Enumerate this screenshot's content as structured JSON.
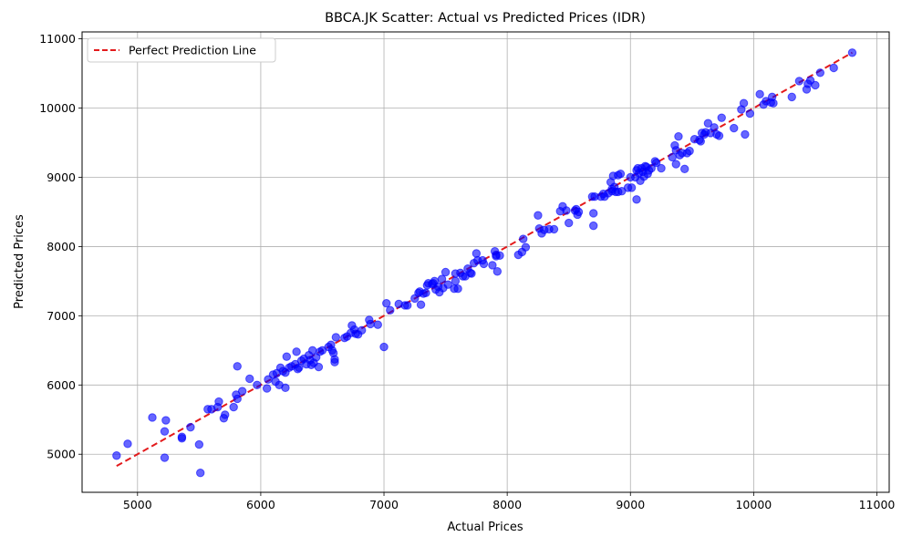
{
  "chart_data": {
    "type": "scatter",
    "title": "BBCA.JK Scatter: Actual vs Predicted Prices (IDR)",
    "xlabel": "Actual Prices",
    "ylabel": "Predicted Prices",
    "xlim": [
      4550,
      11100
    ],
    "ylim": [
      4450,
      11100
    ],
    "xticks": [
      5000,
      6000,
      7000,
      8000,
      9000,
      10000,
      11000
    ],
    "yticks": [
      5000,
      6000,
      7000,
      8000,
      9000,
      10000,
      11000
    ],
    "grid": true,
    "legend_position": "upper-left",
    "colors": {
      "points": "#0000ff",
      "line": "#e31a1c"
    },
    "reference_line": {
      "name": "Perfect Prediction Line",
      "from": [
        4830,
        4830
      ],
      "to": [
        10800,
        10800
      ]
    },
    "points": [
      [
        4830,
        4980
      ],
      [
        4920,
        5150
      ],
      [
        5120,
        5530
      ],
      [
        5220,
        5330
      ],
      [
        5230,
        5490
      ],
      [
        5220,
        4950
      ],
      [
        5360,
        5250
      ],
      [
        5360,
        5230
      ],
      [
        5430,
        5390
      ],
      [
        5500,
        5140
      ],
      [
        5510,
        4730
      ],
      [
        5570,
        5650
      ],
      [
        5600,
        5650
      ],
      [
        5650,
        5680
      ],
      [
        5660,
        5760
      ],
      [
        5700,
        5520
      ],
      [
        5710,
        5570
      ],
      [
        5780,
        5680
      ],
      [
        5800,
        5860
      ],
      [
        5810,
        5800
      ],
      [
        5810,
        6270
      ],
      [
        5850,
        5910
      ],
      [
        5910,
        6090
      ],
      [
        5970,
        6000
      ],
      [
        6050,
        5950
      ],
      [
        6060,
        6080
      ],
      [
        6100,
        6150
      ],
      [
        6120,
        6050
      ],
      [
        6130,
        6170
      ],
      [
        6150,
        6000
      ],
      [
        6160,
        6250
      ],
      [
        6180,
        6200
      ],
      [
        6200,
        5960
      ],
      [
        6200,
        6180
      ],
      [
        6210,
        6410
      ],
      [
        6230,
        6250
      ],
      [
        6250,
        6270
      ],
      [
        6280,
        6300
      ],
      [
        6290,
        6480
      ],
      [
        6300,
        6230
      ],
      [
        6310,
        6250
      ],
      [
        6330,
        6350
      ],
      [
        6350,
        6380
      ],
      [
        6370,
        6300
      ],
      [
        6390,
        6430
      ],
      [
        6400,
        6360
      ],
      [
        6410,
        6290
      ],
      [
        6420,
        6500
      ],
      [
        6430,
        6320
      ],
      [
        6450,
        6400
      ],
      [
        6470,
        6260
      ],
      [
        6480,
        6480
      ],
      [
        6500,
        6500
      ],
      [
        6550,
        6550
      ],
      [
        6570,
        6580
      ],
      [
        6580,
        6500
      ],
      [
        6590,
        6460
      ],
      [
        6600,
        6330
      ],
      [
        6600,
        6370
      ],
      [
        6610,
        6690
      ],
      [
        6680,
        6680
      ],
      [
        6700,
        6700
      ],
      [
        6730,
        6750
      ],
      [
        6740,
        6860
      ],
      [
        6760,
        6800
      ],
      [
        6770,
        6740
      ],
      [
        6790,
        6730
      ],
      [
        6820,
        6790
      ],
      [
        6880,
        6940
      ],
      [
        6890,
        6880
      ],
      [
        6950,
        6870
      ],
      [
        7000,
        6550
      ],
      [
        7020,
        7180
      ],
      [
        7050,
        7080
      ],
      [
        7120,
        7170
      ],
      [
        7170,
        7150
      ],
      [
        7190,
        7150
      ],
      [
        7250,
        7250
      ],
      [
        7280,
        7330
      ],
      [
        7290,
        7350
      ],
      [
        7300,
        7160
      ],
      [
        7320,
        7320
      ],
      [
        7340,
        7330
      ],
      [
        7350,
        7440
      ],
      [
        7360,
        7470
      ],
      [
        7390,
        7460
      ],
      [
        7400,
        7470
      ],
      [
        7410,
        7500
      ],
      [
        7420,
        7380
      ],
      [
        7440,
        7420
      ],
      [
        7450,
        7340
      ],
      [
        7470,
        7530
      ],
      [
        7480,
        7400
      ],
      [
        7500,
        7630
      ],
      [
        7520,
        7450
      ],
      [
        7570,
        7390
      ],
      [
        7580,
        7610
      ],
      [
        7580,
        7500
      ],
      [
        7600,
        7390
      ],
      [
        7620,
        7620
      ],
      [
        7640,
        7570
      ],
      [
        7660,
        7570
      ],
      [
        7680,
        7680
      ],
      [
        7700,
        7620
      ],
      [
        7710,
        7610
      ],
      [
        7730,
        7760
      ],
      [
        7750,
        7900
      ],
      [
        7760,
        7800
      ],
      [
        7800,
        7800
      ],
      [
        7810,
        7750
      ],
      [
        7880,
        7730
      ],
      [
        7900,
        7930
      ],
      [
        7910,
        7880
      ],
      [
        7910,
        7860
      ],
      [
        7920,
        7640
      ],
      [
        7940,
        7870
      ],
      [
        8090,
        7880
      ],
      [
        8120,
        7920
      ],
      [
        8130,
        8110
      ],
      [
        8150,
        7990
      ],
      [
        8250,
        8450
      ],
      [
        8260,
        8260
      ],
      [
        8280,
        8190
      ],
      [
        8300,
        8240
      ],
      [
        8340,
        8250
      ],
      [
        8380,
        8250
      ],
      [
        8430,
        8510
      ],
      [
        8450,
        8580
      ],
      [
        8480,
        8520
      ],
      [
        8500,
        8340
      ],
      [
        8550,
        8520
      ],
      [
        8560,
        8540
      ],
      [
        8570,
        8460
      ],
      [
        8580,
        8500
      ],
      [
        8690,
        8720
      ],
      [
        8700,
        8480
      ],
      [
        8700,
        8300
      ],
      [
        8710,
        8720
      ],
      [
        8760,
        8720
      ],
      [
        8780,
        8760
      ],
      [
        8790,
        8720
      ],
      [
        8820,
        8770
      ],
      [
        8840,
        8930
      ],
      [
        8850,
        8800
      ],
      [
        8850,
        8830
      ],
      [
        8860,
        9020
      ],
      [
        8870,
        8860
      ],
      [
        8880,
        8790
      ],
      [
        8900,
        9030
      ],
      [
        8900,
        8790
      ],
      [
        8920,
        9050
      ],
      [
        8930,
        8800
      ],
      [
        8980,
        8850
      ],
      [
        9000,
        9000
      ],
      [
        9010,
        8850
      ],
      [
        9040,
        9000
      ],
      [
        9050,
        8680
      ],
      [
        9050,
        9100
      ],
      [
        9060,
        9130
      ],
      [
        9070,
        9060
      ],
      [
        9080,
        8950
      ],
      [
        9090,
        9130
      ],
      [
        9100,
        9080
      ],
      [
        9110,
        9010
      ],
      [
        9120,
        9160
      ],
      [
        9130,
        9150
      ],
      [
        9140,
        9050
      ],
      [
        9150,
        9100
      ],
      [
        9170,
        9130
      ],
      [
        9200,
        9230
      ],
      [
        9210,
        9210
      ],
      [
        9250,
        9130
      ],
      [
        9340,
        9290
      ],
      [
        9360,
        9460
      ],
      [
        9370,
        9390
      ],
      [
        9370,
        9190
      ],
      [
        9390,
        9590
      ],
      [
        9400,
        9320
      ],
      [
        9420,
        9350
      ],
      [
        9440,
        9120
      ],
      [
        9460,
        9350
      ],
      [
        9480,
        9380
      ],
      [
        9520,
        9550
      ],
      [
        9560,
        9540
      ],
      [
        9570,
        9520
      ],
      [
        9580,
        9640
      ],
      [
        9600,
        9620
      ],
      [
        9610,
        9650
      ],
      [
        9630,
        9780
      ],
      [
        9650,
        9640
      ],
      [
        9680,
        9720
      ],
      [
        9700,
        9620
      ],
      [
        9720,
        9600
      ],
      [
        9740,
        9860
      ],
      [
        9840,
        9710
      ],
      [
        9900,
        9980
      ],
      [
        9920,
        10070
      ],
      [
        9930,
        9620
      ],
      [
        9970,
        9920
      ],
      [
        10050,
        10200
      ],
      [
        10080,
        10050
      ],
      [
        10100,
        10100
      ],
      [
        10140,
        10080
      ],
      [
        10150,
        10160
      ],
      [
        10160,
        10070
      ],
      [
        10310,
        10160
      ],
      [
        10370,
        10390
      ],
      [
        10430,
        10270
      ],
      [
        10440,
        10350
      ],
      [
        10460,
        10400
      ],
      [
        10500,
        10330
      ],
      [
        10540,
        10510
      ],
      [
        10650,
        10580
      ],
      [
        10800,
        10800
      ]
    ]
  }
}
